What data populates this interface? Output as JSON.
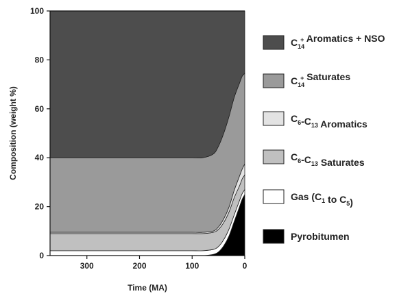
{
  "chart_data": {
    "type": "area",
    "stacked": true,
    "xlabel": "Time (MA)",
    "ylabel": "Composition (weight %)",
    "xlim": [
      370,
      0
    ],
    "ylim": [
      0,
      100
    ],
    "xticks": [
      300,
      200,
      100,
      0
    ],
    "yticks": [
      0,
      20,
      40,
      60,
      80,
      100
    ],
    "x": [
      370,
      300,
      200,
      120,
      100,
      80,
      60,
      50,
      40,
      30,
      20,
      10,
      5,
      0
    ],
    "series": [
      {
        "name": "Pyrobitumen",
        "color": "#000000",
        "values": [
          0,
          0,
          0,
          0,
          0,
          0,
          0.5,
          1.5,
          4,
          8,
          14,
          20,
          23,
          25
        ]
      },
      {
        "name": "Gas (C1 to C5)",
        "color": "#ffffff",
        "values": [
          2,
          2,
          2,
          2,
          2,
          2,
          2,
          2.2,
          2.5,
          2.8,
          2.7,
          2.5,
          2.3,
          2
        ]
      },
      {
        "name": "C6-C13 Saturates",
        "color": "#c0c0c0",
        "values": [
          7,
          7,
          7,
          7,
          7,
          7,
          7,
          7,
          7,
          7,
          7,
          6,
          6,
          6
        ]
      },
      {
        "name": "C6-C13 Aromatics",
        "color": "#e3e3e3",
        "values": [
          0.5,
          0.5,
          0.5,
          0.5,
          0.5,
          0.5,
          0.5,
          1,
          1.5,
          2,
          3,
          4,
          4,
          4.5
        ]
      },
      {
        "name": "C14+ Saturates",
        "color": "#9a9a9a",
        "values": [
          30.5,
          30.5,
          30.5,
          30.5,
          30.5,
          30.5,
          31.5,
          33,
          35,
          37,
          38,
          38,
          38,
          37
        ]
      },
      {
        "name": "C14+ Aromatics + NSO",
        "color": "#4d4d4d",
        "values": [
          60,
          60,
          60,
          60,
          60,
          60,
          58.5,
          55.3,
          50,
          43.2,
          35.3,
          29.5,
          26.7,
          25.5
        ]
      }
    ],
    "legend": {
      "placement": "right",
      "entries": [
        {
          "key": "arom_nso",
          "pre": "C",
          "sub": "14",
          "sup": "+",
          "post": " Aromatics + NSO",
          "color": "#4d4d4d"
        },
        {
          "key": "c14_sat",
          "pre": "C",
          "sub": "14",
          "sup": "+",
          "post": " Saturates",
          "color": "#9a9a9a"
        },
        {
          "key": "c6_arom",
          "pre": "C",
          "sub": "6",
          "mid": "-C",
          "sub2": "13",
          "post": " Aromatics",
          "color": "#e3e3e3"
        },
        {
          "key": "c6_sat",
          "pre": "C",
          "sub": "6",
          "mid": "-C",
          "sub2": "13",
          "post": " Saturates",
          "color": "#c0c0c0"
        },
        {
          "key": "gas",
          "pre": "Gas (C",
          "sub": "1",
          "mid": " to C",
          "sub2": "5",
          "post": ")",
          "color": "#ffffff"
        },
        {
          "key": "pyro",
          "pre": "Pyrobitumen",
          "color": "#000000"
        }
      ]
    }
  }
}
